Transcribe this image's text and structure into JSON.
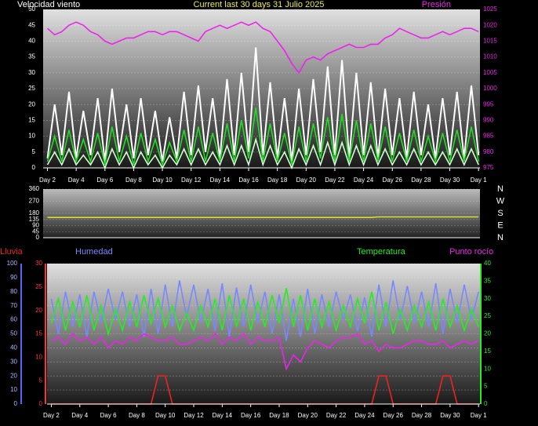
{
  "chart_data": [
    {
      "type": "line",
      "title": "Current last 30 days 31 Julio 2025",
      "x": [
        2,
        2.5,
        3,
        3.5,
        4,
        4.5,
        5,
        5.5,
        6,
        6.5,
        7,
        7.5,
        8,
        8.5,
        9,
        9.5,
        10,
        10.5,
        11,
        11.5,
        12,
        12.5,
        13,
        13.5,
        14,
        14.5,
        15,
        15.5,
        16,
        16.5,
        17,
        17.5,
        18,
        18.5,
        19,
        19.5,
        20,
        20.5,
        21,
        21.5,
        22,
        22.5,
        23,
        23.5,
        24,
        24.5,
        25,
        25.5,
        26,
        26.5,
        27,
        27.5,
        28,
        28.5,
        29,
        29.5,
        30,
        30.5,
        31,
        31.5,
        32
      ],
      "xlim": [
        1.7,
        32.1
      ],
      "xticks": [
        {
          "value": 2,
          "label": "Day 2"
        },
        {
          "value": 4,
          "label": "Day 4"
        },
        {
          "value": 6,
          "label": "Day 6"
        },
        {
          "value": 8,
          "label": "Day 8"
        },
        {
          "value": 10,
          "label": "Day 10"
        },
        {
          "value": 12,
          "label": "Day 12"
        },
        {
          "value": 14,
          "label": "Day 14"
        },
        {
          "value": 16,
          "label": "Day 16"
        },
        {
          "value": 18,
          "label": "Day 18"
        },
        {
          "value": 20,
          "label": "Day 20"
        },
        {
          "value": 22,
          "label": "Day 22"
        },
        {
          "value": 24,
          "label": "Day 24"
        },
        {
          "value": 26,
          "label": "Day 26"
        },
        {
          "value": 28,
          "label": "Day 28"
        },
        {
          "value": 30,
          "label": "Day 30"
        },
        {
          "value": 32,
          "label": "Day 1"
        }
      ],
      "ylim": [
        0,
        50
      ],
      "yticks": [
        0,
        5,
        10,
        15,
        20,
        25,
        30,
        35,
        40,
        45,
        50
      ],
      "y2lim": [
        975,
        1025
      ],
      "y2ticks": [
        975,
        980,
        985,
        990,
        995,
        1000,
        1005,
        1010,
        1015,
        1020,
        1025
      ],
      "grid": true,
      "series": [
        {
          "name": "Velocidad viento",
          "color": "#ffffff",
          "values": [
            3,
            20,
            4,
            24,
            3,
            18,
            4,
            22,
            2,
            25,
            5,
            20,
            3,
            22,
            4,
            18,
            2,
            16,
            3,
            24,
            4,
            26,
            5,
            22,
            3,
            28,
            4,
            30,
            5,
            38,
            4,
            27,
            3,
            22,
            2,
            25,
            4,
            28,
            5,
            32,
            4,
            34,
            3,
            30,
            4,
            27,
            3,
            25,
            4,
            22,
            3,
            24,
            4,
            20,
            3,
            22,
            4,
            24,
            3,
            26,
            4
          ]
        },
        {
          "color": "#22dd22",
          "values": [
            2,
            10,
            2,
            12,
            2,
            9,
            2,
            11,
            1,
            13,
            2,
            10,
            1,
            11,
            2,
            9,
            1,
            8,
            2,
            12,
            2,
            13,
            2,
            11,
            2,
            14,
            2,
            15,
            3,
            19,
            2,
            14,
            2,
            11,
            1,
            13,
            2,
            14,
            3,
            16,
            2,
            17,
            2,
            15,
            2,
            14,
            2,
            13,
            2,
            11,
            2,
            12,
            2,
            10,
            2,
            11,
            2,
            12,
            2,
            13,
            2
          ]
        },
        {
          "color": "#ccffcc",
          "values": [
            1,
            5,
            1,
            6,
            1,
            4,
            1,
            5,
            0,
            6,
            1,
            5,
            0,
            5,
            1,
            4,
            0,
            4,
            1,
            6,
            1,
            6,
            1,
            5,
            1,
            7,
            1,
            7,
            1,
            9,
            1,
            7,
            1,
            5,
            0,
            6,
            1,
            7,
            1,
            8,
            1,
            8,
            1,
            7,
            1,
            7,
            1,
            6,
            1,
            5,
            1,
            6,
            1,
            5,
            1,
            5,
            1,
            6,
            1,
            6,
            1
          ]
        },
        {
          "name": "Presión",
          "color": "#ee22ee",
          "axis": "y2",
          "values": [
            1019,
            1017,
            1018,
            1020,
            1021,
            1020,
            1018,
            1017,
            1015,
            1014,
            1015,
            1016,
            1016,
            1017,
            1018,
            1018,
            1017,
            1018,
            1018,
            1017,
            1016,
            1015,
            1018,
            1019,
            1020,
            1019,
            1020,
            1021,
            1020,
            1021,
            1019,
            1018,
            1015,
            1012,
            1008,
            1005,
            1009,
            1010,
            1009,
            1011,
            1012,
            1013,
            1014,
            1013,
            1013,
            1014,
            1014,
            1016,
            1017,
            1019,
            1018,
            1017,
            1016,
            1016,
            1017,
            1018,
            1017,
            1018,
            1019,
            1019,
            1018
          ]
        }
      ]
    },
    {
      "type": "line",
      "x": [
        2,
        2.5,
        3,
        3.5,
        4,
        4.5,
        5,
        5.5,
        6,
        6.5,
        7,
        7.5,
        8,
        8.5,
        9,
        9.5,
        10,
        10.5,
        11,
        11.5,
        12,
        12.5,
        13,
        13.5,
        14,
        14.5,
        15,
        15.5,
        16,
        16.5,
        17,
        17.5,
        18,
        18.5,
        19,
        19.5,
        20,
        20.5,
        21,
        21.5,
        22,
        22.5,
        23,
        23.5,
        24,
        24.5,
        25,
        25.5,
        26,
        26.5,
        27,
        27.5,
        28,
        28.5,
        29,
        29.5,
        30,
        30.5,
        31,
        31.5,
        32
      ],
      "xlim": [
        1.7,
        32.1
      ],
      "ylim": [
        0,
        360
      ],
      "yticks": [
        0,
        45,
        90,
        135,
        180,
        270,
        360
      ],
      "grid": true,
      "direction_labels": [
        "N",
        "W",
        "S",
        "E",
        "N"
      ],
      "series": [
        {
          "color": "#dddd33",
          "values": [
            150,
            150,
            150,
            150,
            150,
            150,
            150,
            150,
            150,
            150,
            150,
            150,
            150,
            150,
            150,
            150,
            150,
            150,
            150,
            150,
            150,
            150,
            150,
            150,
            150,
            150,
            150,
            150,
            150,
            150,
            150,
            150,
            150,
            150,
            150,
            150,
            150,
            150,
            150,
            150,
            150,
            150,
            150,
            150,
            150,
            150,
            154,
            154,
            154,
            154,
            154,
            154,
            154,
            154,
            154,
            154,
            154,
            154,
            154,
            154,
            154
          ]
        }
      ]
    },
    {
      "type": "line",
      "x": [
        2,
        2.5,
        3,
        3.5,
        4,
        4.5,
        5,
        5.5,
        6,
        6.5,
        7,
        7.5,
        8,
        8.5,
        9,
        9.5,
        10,
        10.5,
        11,
        11.5,
        12,
        12.5,
        13,
        13.5,
        14,
        14.5,
        15,
        15.5,
        16,
        16.5,
        17,
        17.5,
        18,
        18.5,
        19,
        19.5,
        20,
        20.5,
        21,
        21.5,
        22,
        22.5,
        23,
        23.5,
        24,
        24.5,
        25,
        25.5,
        26,
        26.5,
        27,
        27.5,
        28,
        28.5,
        29,
        29.5,
        30,
        30.5,
        31,
        31.5,
        32
      ],
      "xlim": [
        1.7,
        32.1
      ],
      "xticks": [
        {
          "value": 2,
          "label": "Day 2"
        },
        {
          "value": 4,
          "label": "Day 4"
        },
        {
          "value": 6,
          "label": "Day 6"
        },
        {
          "value": 8,
          "label": "Day 8"
        },
        {
          "value": 10,
          "label": "Day 10"
        },
        {
          "value": 12,
          "label": "Day 12"
        },
        {
          "value": 14,
          "label": "Day 14"
        },
        {
          "value": 16,
          "label": "Day 16"
        },
        {
          "value": 18,
          "label": "Day 18"
        },
        {
          "value": 20,
          "label": "Day 20"
        },
        {
          "value": 22,
          "label": "Day 22"
        },
        {
          "value": 24,
          "label": "Day 24"
        },
        {
          "value": 26,
          "label": "Day 26"
        },
        {
          "value": 28,
          "label": "Day 28"
        },
        {
          "value": 30,
          "label": "Day 30"
        },
        {
          "value": 32,
          "label": "Day 1"
        }
      ],
      "ylim": [
        0,
        100
      ],
      "yticks": [
        0,
        10,
        20,
        30,
        40,
        50,
        60,
        70,
        80,
        90,
        100
      ],
      "y3lim": [
        0,
        30
      ],
      "y3ticks": [
        0,
        5,
        10,
        15,
        20,
        25,
        30
      ],
      "y2lim": [
        0,
        40
      ],
      "y2ticks": [
        0,
        5,
        10,
        15,
        20,
        25,
        30,
        35,
        40
      ],
      "grid": true,
      "series": [
        {
          "name": "Humedad",
          "color": "#7788ff",
          "values": [
            75,
            50,
            80,
            55,
            78,
            48,
            80,
            58,
            82,
            60,
            80,
            55,
            78,
            48,
            82,
            50,
            85,
            55,
            88,
            62,
            85,
            58,
            82,
            52,
            86,
            48,
            83,
            55,
            85,
            58,
            80,
            50,
            78,
            45,
            75,
            48,
            82,
            50,
            78,
            55,
            80,
            60,
            78,
            52,
            76,
            48,
            85,
            55,
            88,
            60,
            84,
            58,
            80,
            55,
            86,
            50,
            82,
            58,
            85,
            60,
            80
          ]
        },
        {
          "name": "Temperatura",
          "color": "#22ee22",
          "axis": "y2",
          "values": [
            23,
            30,
            21,
            29,
            22,
            31,
            21,
            28,
            20,
            27,
            21,
            29,
            22,
            31,
            23,
            30,
            22,
            28,
            21,
            26,
            21,
            28,
            22,
            30,
            21,
            31,
            22,
            30,
            21,
            29,
            22,
            31,
            23,
            33,
            22,
            31,
            21,
            30,
            22,
            29,
            21,
            28,
            22,
            30,
            23,
            32,
            21,
            29,
            20,
            27,
            21,
            28,
            22,
            29,
            21,
            30,
            22,
            28,
            21,
            27,
            22
          ]
        },
        {
          "name": "Punto rocío",
          "color": "#ee22ee",
          "axis": "y2",
          "values": [
            18,
            19,
            17,
            20,
            18,
            19,
            17,
            19,
            16,
            18,
            17,
            19,
            18,
            20,
            19,
            18,
            18,
            19,
            17,
            17,
            18,
            19,
            18,
            20,
            17,
            19,
            18,
            20,
            17,
            19,
            18,
            18,
            19,
            10,
            14,
            12,
            16,
            18,
            17,
            16,
            18,
            19,
            19,
            20,
            17,
            18,
            15,
            17,
            16,
            16,
            17,
            18,
            18,
            17,
            17,
            18,
            16,
            17,
            18,
            17,
            18
          ]
        },
        {
          "name": "Lluvia",
          "color": "#ee2222",
          "axis": "y3",
          "values": [
            0,
            0,
            0,
            0,
            0,
            0,
            0,
            0,
            0,
            0,
            0,
            0,
            0,
            0,
            0,
            6,
            6,
            0,
            0,
            0,
            0,
            0,
            0,
            0,
            0,
            0,
            0,
            0,
            0,
            0,
            0,
            0,
            0,
            0,
            0,
            0,
            0,
            0,
            0,
            0,
            0,
            0,
            0,
            0,
            0,
            0,
            6,
            6,
            0,
            0,
            0,
            0,
            0,
            0,
            0,
            6,
            6,
            0,
            0,
            0,
            0
          ]
        }
      ]
    }
  ]
}
